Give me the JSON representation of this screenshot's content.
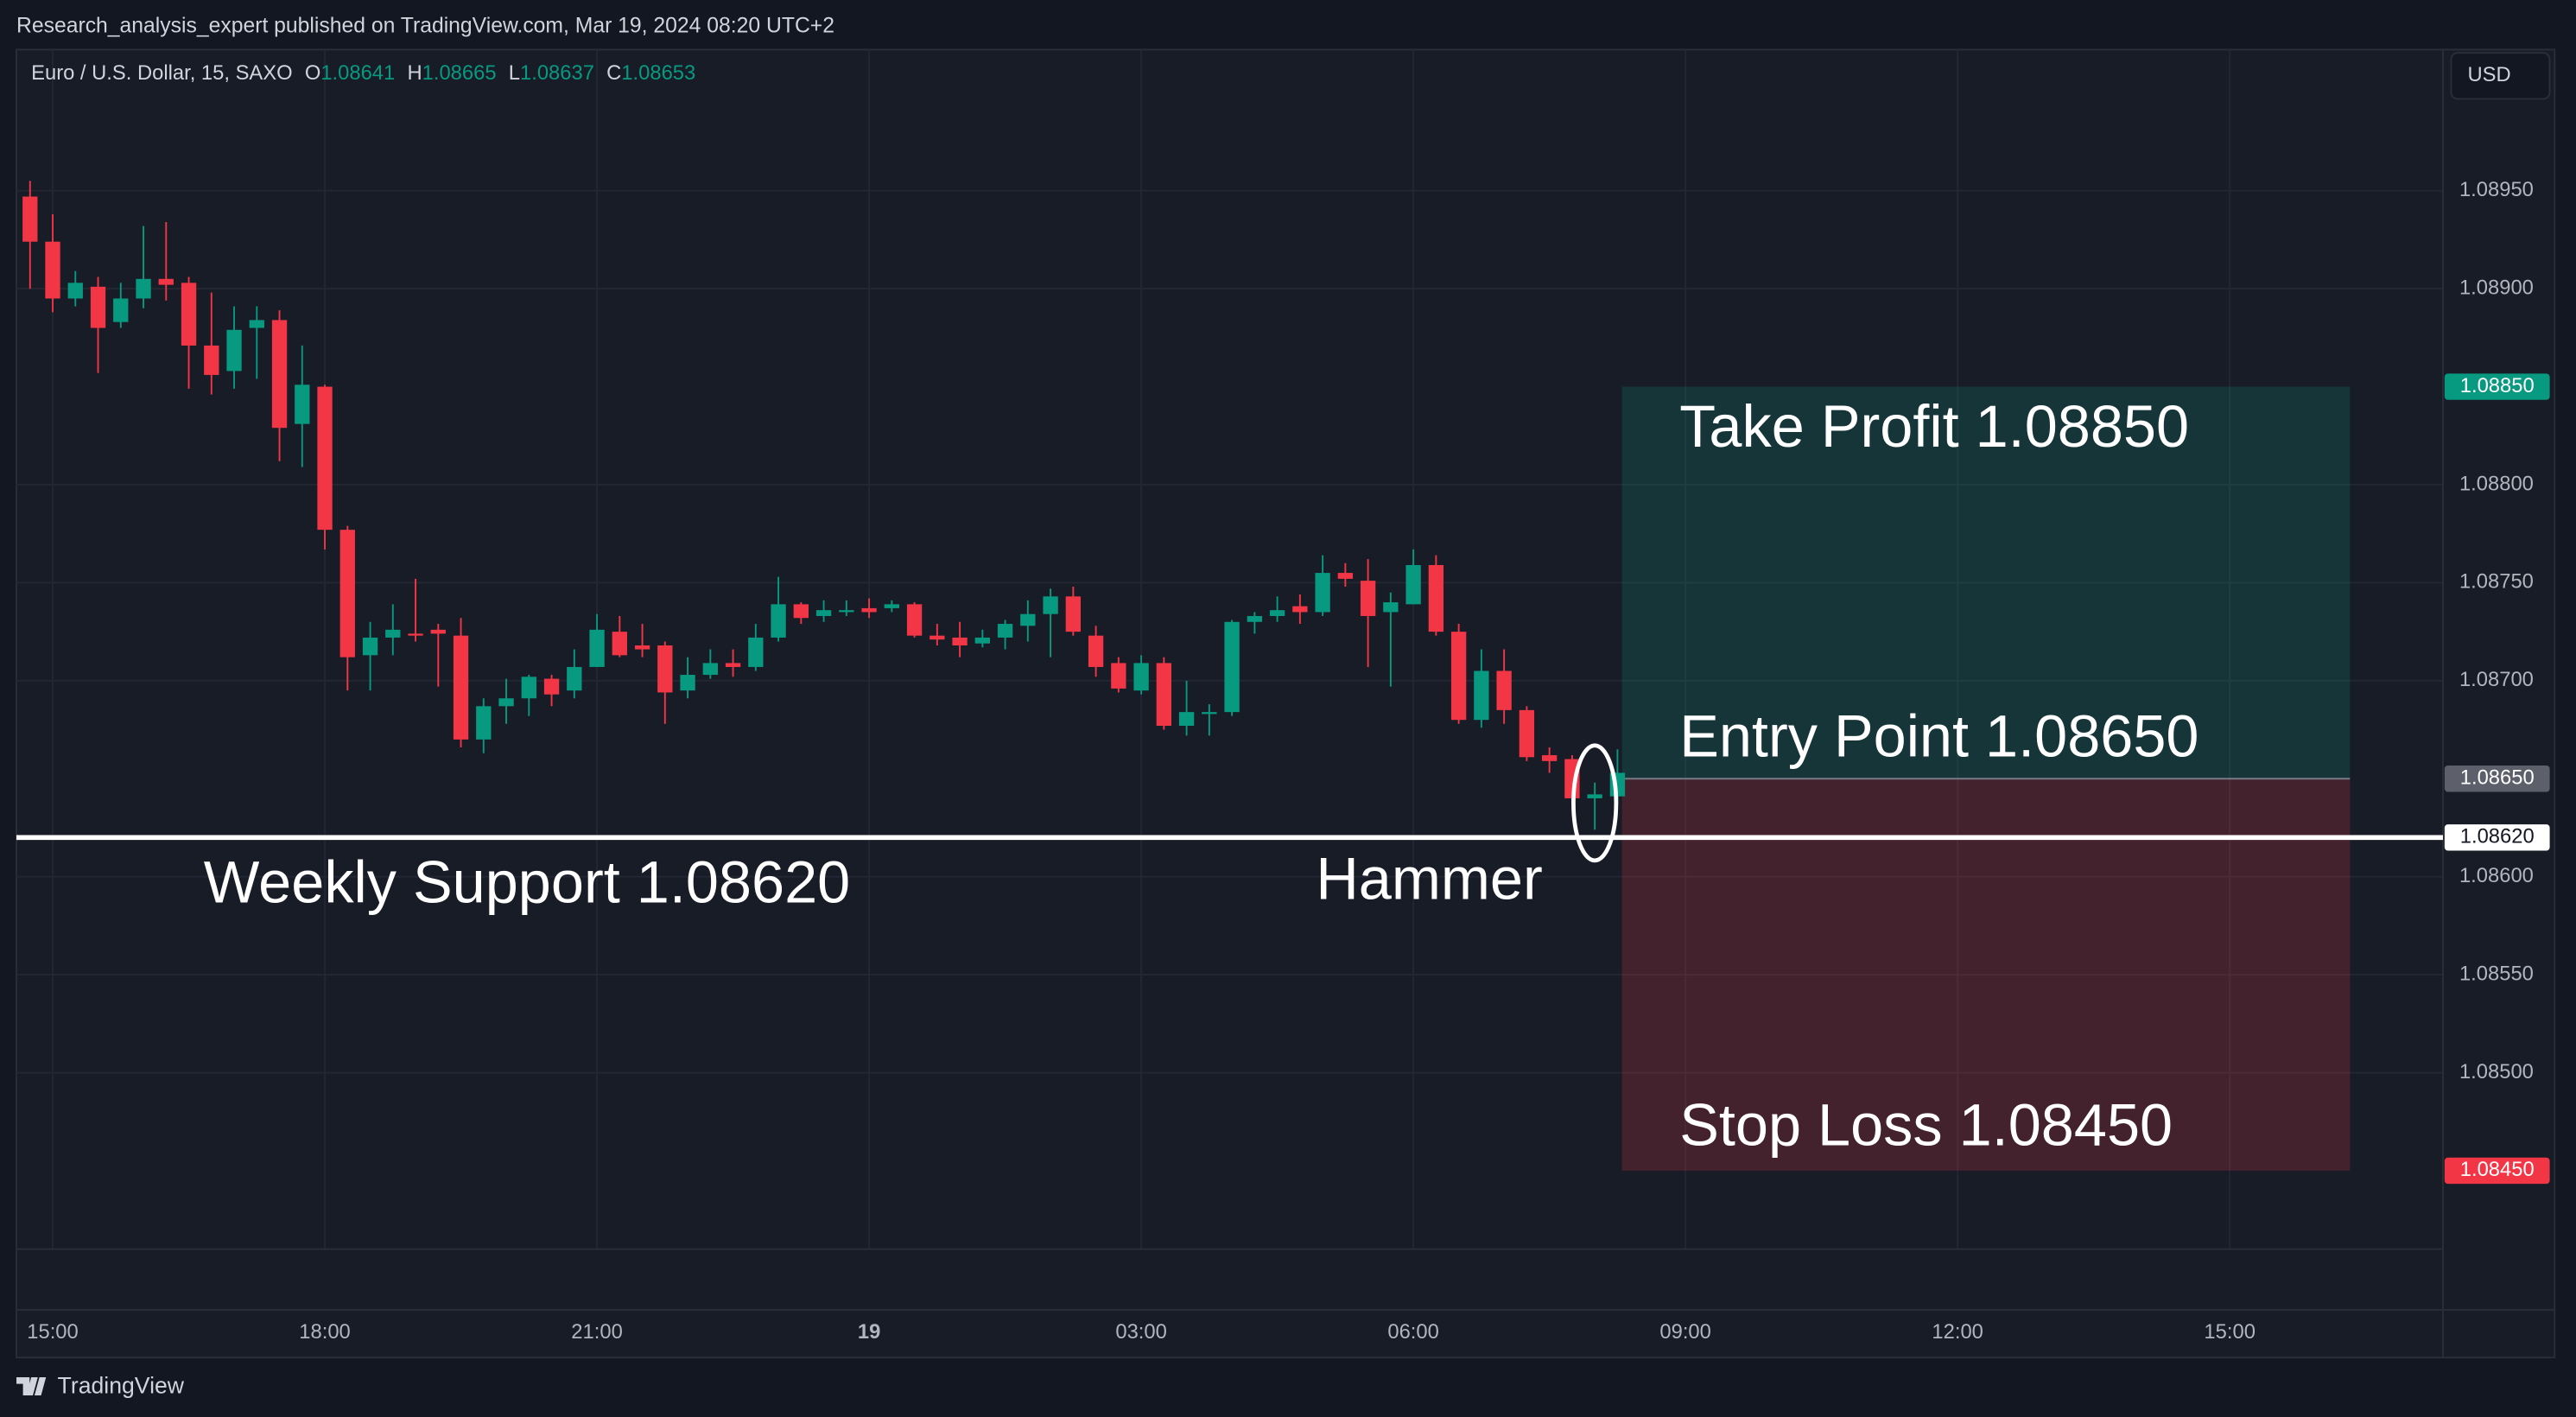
{
  "header": {
    "publisher": "Research_analysis_expert published on TradingView.com, Mar 19, 2024 08:20 UTC+2",
    "symbol": "Euro / U.S. Dollar, 15, SAXO",
    "ohlc_labels": [
      "O",
      "H",
      "L",
      "C"
    ],
    "currency": "USD",
    "brand": "TradingView"
  },
  "chart_data": {
    "type": "candlestick",
    "up_color": "#089981",
    "down_color": "#f23645",
    "grid": true,
    "open": [
      1.08947,
      1.08924,
      1.08895,
      1.08901,
      1.08883,
      1.08895,
      1.08905,
      1.08903,
      1.08871,
      1.08858,
      1.0888,
      1.08884,
      1.08831,
      1.0885,
      1.08777,
      1.08713,
      1.08722,
      1.08724,
      1.08726,
      1.08723,
      1.0867,
      1.08687,
      1.08691,
      1.08701,
      1.08695,
      1.08707,
      1.08725,
      1.08718,
      1.08718,
      1.08695,
      1.08703,
      1.08709,
      1.08707,
      1.08722,
      1.08739,
      1.08733,
      1.08735,
      1.08737,
      1.08737,
      1.08739,
      1.08723,
      1.08722,
      1.08719,
      1.08722,
      1.08728,
      1.08734,
      1.08743,
      1.08723,
      1.08709,
      1.08695,
      1.08709,
      1.08677,
      1.08683,
      1.08684,
      1.0873,
      1.08733,
      1.08738,
      1.08735,
      1.08755,
      1.08751,
      1.08735,
      1.08739,
      1.08759,
      1.08725,
      1.0868,
      1.08705,
      1.08685,
      1.08662,
      1.0866,
      1.0864,
      1.08641
    ],
    "high": [
      1.08955,
      1.08938,
      1.08909,
      1.08906,
      1.08903,
      1.08932,
      1.08934,
      1.08906,
      1.08898,
      1.08891,
      1.08891,
      1.08889,
      1.08871,
      1.08851,
      1.08779,
      1.0873,
      1.08739,
      1.08752,
      1.08729,
      1.08732,
      1.08691,
      1.08701,
      1.08703,
      1.08703,
      1.08716,
      1.08734,
      1.08733,
      1.08729,
      1.0872,
      1.08712,
      1.08716,
      1.08716,
      1.08729,
      1.08753,
      1.0874,
      1.08741,
      1.08741,
      1.08742,
      1.08741,
      1.0874,
      1.08729,
      1.0873,
      1.08726,
      1.08731,
      1.08741,
      1.08747,
      1.08748,
      1.08728,
      1.08712,
      1.08713,
      1.08712,
      1.087,
      1.08688,
      1.08731,
      1.08735,
      1.08743,
      1.08744,
      1.08764,
      1.0876,
      1.08762,
      1.08745,
      1.08767,
      1.08764,
      1.08729,
      1.08716,
      1.08716,
      1.08687,
      1.08666,
      1.08662,
      1.08648,
      1.08665
    ],
    "low": [
      1.089,
      1.08888,
      1.08891,
      1.08857,
      1.0888,
      1.0889,
      1.08894,
      1.08849,
      1.08846,
      1.08849,
      1.08854,
      1.08812,
      1.08809,
      1.08767,
      1.08695,
      1.08695,
      1.08713,
      1.0872,
      1.08697,
      1.08666,
      1.08663,
      1.08678,
      1.08682,
      1.08687,
      1.08691,
      1.08707,
      1.08712,
      1.08712,
      1.08678,
      1.08691,
      1.08701,
      1.08702,
      1.08705,
      1.0872,
      1.08729,
      1.0873,
      1.08733,
      1.08732,
      1.08735,
      1.08722,
      1.08718,
      1.08712,
      1.08717,
      1.08716,
      1.0872,
      1.08712,
      1.08723,
      1.08702,
      1.08694,
      1.08693,
      1.08675,
      1.08672,
      1.08672,
      1.08682,
      1.08724,
      1.0873,
      1.08729,
      1.08733,
      1.08748,
      1.08707,
      1.08697,
      1.08739,
      1.08723,
      1.08678,
      1.08676,
      1.08678,
      1.08659,
      1.08653,
      1.08638,
      1.08624,
      1.08637
    ],
    "close": [
      1.08924,
      1.08895,
      1.08903,
      1.0888,
      1.08895,
      1.08905,
      1.08902,
      1.08871,
      1.08856,
      1.08879,
      1.08884,
      1.08829,
      1.08851,
      1.08777,
      1.08712,
      1.08722,
      1.08726,
      1.08723,
      1.08724,
      1.0867,
      1.08687,
      1.08691,
      1.08702,
      1.08693,
      1.08707,
      1.08726,
      1.08713,
      1.08716,
      1.08694,
      1.08703,
      1.08709,
      1.08707,
      1.08722,
      1.08739,
      1.08732,
      1.08736,
      1.08736,
      1.08735,
      1.08739,
      1.08723,
      1.08721,
      1.08718,
      1.08722,
      1.08729,
      1.08734,
      1.08743,
      1.08725,
      1.08707,
      1.08696,
      1.08709,
      1.08677,
      1.08684,
      1.08684,
      1.0873,
      1.08733,
      1.08736,
      1.08735,
      1.08755,
      1.08752,
      1.08733,
      1.0874,
      1.08759,
      1.08725,
      1.0868,
      1.08705,
      1.08685,
      1.08661,
      1.08659,
      1.0864,
      1.08642,
      1.08653
    ],
    "xlim": [
      -0.6,
      106.4
    ],
    "xticks": [
      {
        "value": 1,
        "label": "15:00"
      },
      {
        "value": 13,
        "label": "18:00"
      },
      {
        "value": 25,
        "label": "21:00"
      },
      {
        "value": 37,
        "label": "19"
      },
      {
        "value": 49,
        "label": "03:00"
      },
      {
        "value": 61,
        "label": "06:00"
      },
      {
        "value": 73,
        "label": "09:00"
      },
      {
        "value": 85,
        "label": "12:00"
      },
      {
        "value": 97,
        "label": "15:00"
      }
    ],
    "ylim": [
      1.0841,
      1.09022
    ],
    "yticks": [
      {
        "value": 1.0895,
        "label": "1.08950"
      },
      {
        "value": 1.089,
        "label": "1.08900"
      },
      {
        "value": 1.088,
        "label": "1.08800"
      },
      {
        "value": 1.0875,
        "label": "1.08750"
      },
      {
        "value": 1.087,
        "label": "1.08700"
      },
      {
        "value": 1.086,
        "label": "1.08600"
      },
      {
        "value": 1.0855,
        "label": "1.08550"
      },
      {
        "value": 1.085,
        "label": "1.08500"
      }
    ],
    "support": {
      "value": 1.0862,
      "label": "1.08620",
      "text": "Weekly Support 1.08620"
    },
    "hammer": {
      "index": 69,
      "text": "Hammer"
    },
    "position": {
      "x_range": [
        70.2,
        102.3
      ],
      "take_profit": {
        "value": 1.0885,
        "label": "1.08850",
        "text": "Take Profit 1.08850"
      },
      "entry": {
        "value": 1.0865,
        "label": "1.08650",
        "text": "Entry Point 1.08650"
      },
      "stop_loss": {
        "value": 1.0845,
        "label": "1.08450",
        "text": "Stop Loss 1.08450"
      }
    }
  }
}
